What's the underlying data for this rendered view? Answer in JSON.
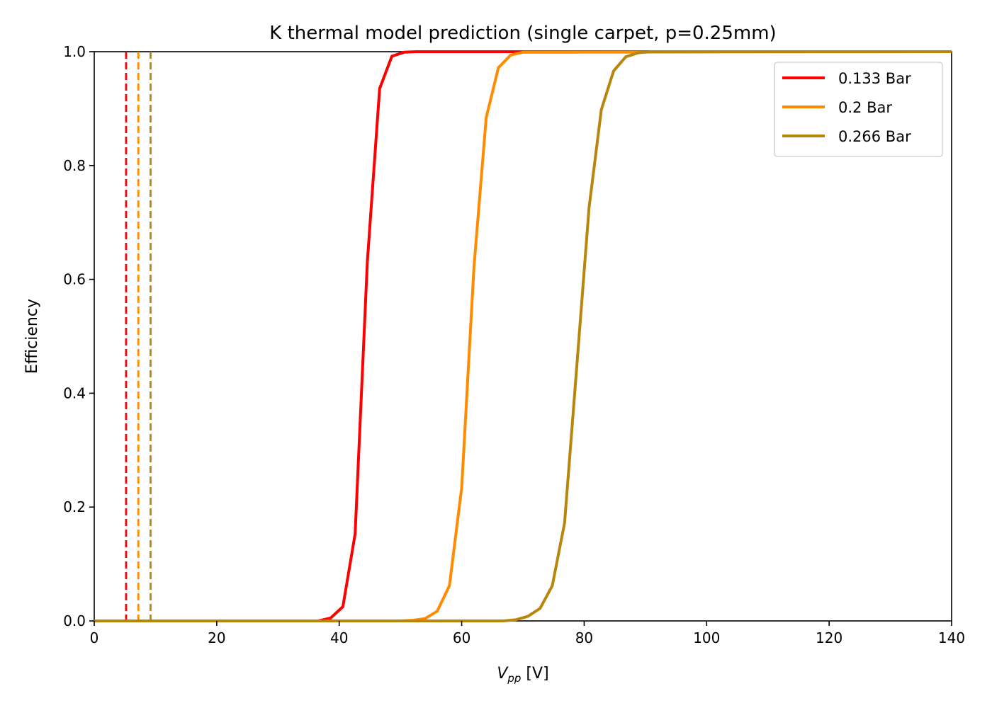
{
  "chart_data": {
    "type": "line",
    "title": "K thermal model prediction (single carpet, p=0.25mm)",
    "xlabel_main": "V",
    "xlabel_sub": "pp",
    "xlabel_unit": " [V]",
    "ylabel": "Efficiency",
    "xlim": [
      0,
      140
    ],
    "ylim": [
      0,
      1
    ],
    "xticks": [
      0,
      20,
      40,
      60,
      80,
      100,
      120,
      140
    ],
    "yticks": [
      0.0,
      0.2,
      0.4,
      0.6,
      0.8,
      1.0
    ],
    "xtick_labels": [
      "0",
      "20",
      "40",
      "60",
      "80",
      "100",
      "120",
      "140"
    ],
    "ytick_labels": [
      "0.0",
      "0.2",
      "0.4",
      "0.6",
      "0.8",
      "1.0"
    ],
    "grid": false,
    "legend_position": "top-right",
    "series": [
      {
        "name": "0.133 Bar",
        "color": "#ff0000",
        "threshold_x": 5.2,
        "x": [
          0,
          36.6,
          38.6,
          40.6,
          42.6,
          44.6,
          46.6,
          48.6,
          50.6,
          52.6,
          140
        ],
        "y": [
          0,
          0.0,
          0.005,
          0.025,
          0.153,
          0.632,
          0.935,
          0.992,
          0.999,
          1.0,
          1.0
        ]
      },
      {
        "name": "0.2 Bar",
        "color": "#ff8c00",
        "threshold_x": 7.2,
        "x": [
          0,
          50.0,
          52.0,
          54.0,
          56.0,
          58.0,
          60.0,
          62.0,
          64.0,
          66.0,
          68.0,
          70.0,
          140
        ],
        "y": [
          0,
          0.0,
          0.001,
          0.004,
          0.017,
          0.062,
          0.234,
          0.621,
          0.884,
          0.972,
          0.994,
          0.999,
          1.0
        ]
      },
      {
        "name": "0.266 Bar",
        "color": "#b8860b",
        "threshold_x": 9.2,
        "x": [
          0,
          66.8,
          68.8,
          70.8,
          72.8,
          74.8,
          76.8,
          78.8,
          80.8,
          82.8,
          84.8,
          86.8,
          88.8,
          90.8,
          140
        ],
        "y": [
          0,
          0.0,
          0.002,
          0.008,
          0.022,
          0.062,
          0.172,
          0.448,
          0.726,
          0.898,
          0.966,
          0.991,
          0.998,
          1.0,
          1.0
        ]
      }
    ]
  }
}
